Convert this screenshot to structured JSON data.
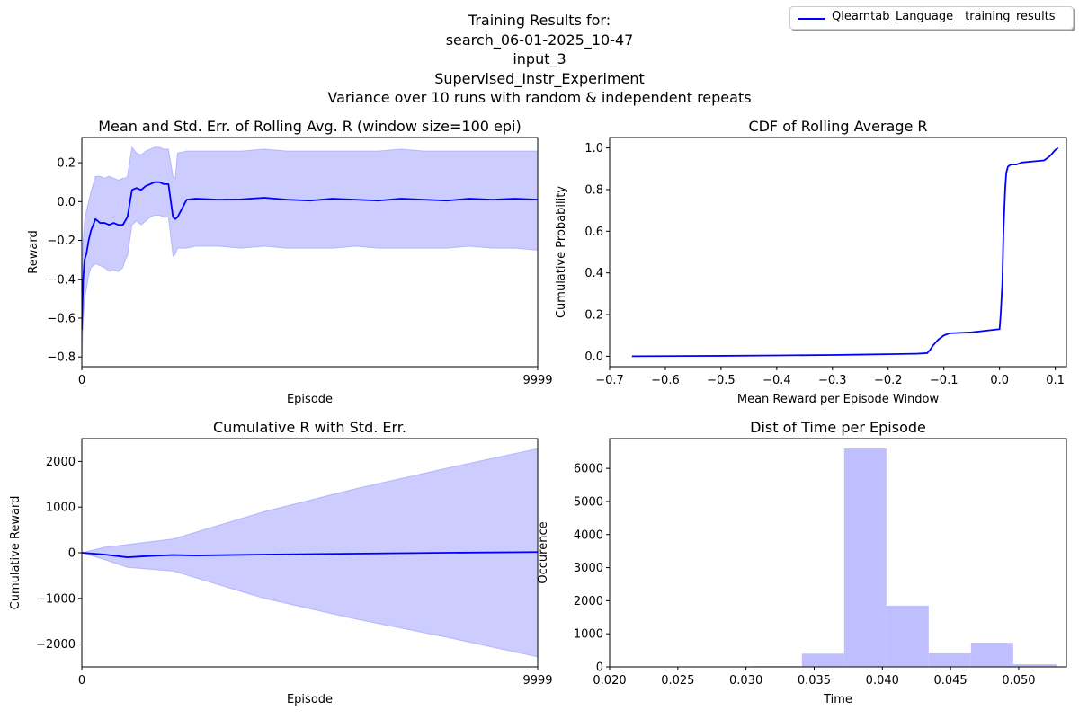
{
  "figure": {
    "suptitle_lines": [
      "Training Results for:",
      "search_06-01-2025_10-47",
      "input_3",
      "Supervised_Instr_Experiment",
      "Variance over 10 runs with random & independent repeats"
    ],
    "legend_label": "Qlearntab_Language__training_results",
    "line_color": "#0000ff",
    "fill_color": "#ccccff",
    "hist_color": "#bfbfff"
  },
  "chart_data": [
    {
      "type": "line",
      "title": "Mean and Std. Err. of Rolling Avg. R (window size=100 epi)",
      "xlabel": "Episode",
      "ylabel": "Reward",
      "xlim": [
        0,
        9999
      ],
      "ylim": [
        -0.85,
        0.33
      ],
      "xticks": [
        0,
        9999
      ],
      "yticks": [
        -0.8,
        -0.6,
        -0.4,
        -0.2,
        0.0,
        0.2
      ],
      "ytick_labels": [
        "−0.8",
        "−0.6",
        "−0.4",
        "−0.2",
        "0.0",
        "0.2"
      ],
      "series": [
        {
          "x": [
            0,
            30,
            60,
            100,
            150,
            200,
            300,
            400,
            500,
            600,
            700,
            800,
            900,
            950,
            1000,
            1100,
            1200,
            1300,
            1400,
            1500,
            1600,
            1700,
            1800,
            1900,
            2000,
            2050,
            2100,
            2300,
            2500,
            3000,
            3500,
            4000,
            4500,
            5000,
            5500,
            6000,
            6500,
            7000,
            7500,
            8000,
            8500,
            9000,
            9500,
            9999
          ],
          "y": [
            -0.66,
            -0.4,
            -0.3,
            -0.27,
            -0.2,
            -0.15,
            -0.09,
            -0.11,
            -0.11,
            -0.12,
            -0.11,
            -0.12,
            -0.12,
            -0.1,
            -0.08,
            0.06,
            0.07,
            0.06,
            0.08,
            0.09,
            0.1,
            0.1,
            0.09,
            0.09,
            -0.08,
            -0.09,
            -0.08,
            0.01,
            0.015,
            0.01,
            0.012,
            0.02,
            0.01,
            0.005,
            0.015,
            0.01,
            0.005,
            0.015,
            0.01,
            0.005,
            0.015,
            0.01,
            0.015,
            0.01
          ],
          "lower": [
            -0.82,
            -0.6,
            -0.5,
            -0.45,
            -0.38,
            -0.34,
            -0.32,
            -0.33,
            -0.34,
            -0.36,
            -0.35,
            -0.36,
            -0.34,
            -0.3,
            -0.28,
            -0.12,
            -0.1,
            -0.12,
            -0.1,
            -0.08,
            -0.07,
            -0.07,
            -0.08,
            -0.08,
            -0.28,
            -0.27,
            -0.24,
            -0.24,
            -0.23,
            -0.23,
            -0.24,
            -0.23,
            -0.24,
            -0.24,
            -0.24,
            -0.23,
            -0.24,
            -0.24,
            -0.24,
            -0.24,
            -0.23,
            -0.24,
            -0.24,
            -0.25
          ],
          "upper": [
            -0.5,
            -0.2,
            -0.1,
            -0.05,
            0.0,
            0.05,
            0.13,
            0.13,
            0.12,
            0.13,
            0.12,
            0.11,
            0.12,
            0.12,
            0.13,
            0.28,
            0.25,
            0.24,
            0.26,
            0.27,
            0.28,
            0.28,
            0.27,
            0.27,
            0.13,
            0.12,
            0.25,
            0.26,
            0.26,
            0.26,
            0.26,
            0.27,
            0.26,
            0.26,
            0.26,
            0.26,
            0.26,
            0.27,
            0.26,
            0.26,
            0.26,
            0.26,
            0.26,
            0.26
          ]
        }
      ]
    },
    {
      "type": "line",
      "title": "CDF of Rolling Average R",
      "xlabel": "Mean Reward per Episode Window",
      "ylabel": "Cumulative Probability",
      "xlim": [
        -0.7,
        0.12
      ],
      "ylim": [
        -0.05,
        1.05
      ],
      "xticks": [
        -0.7,
        -0.6,
        -0.5,
        -0.4,
        -0.3,
        -0.2,
        -0.1,
        0.0,
        0.1
      ],
      "xtick_labels": [
        "−0.7",
        "−0.6",
        "−0.5",
        "−0.4",
        "−0.3",
        "−0.2",
        "−0.1",
        "0.0",
        "0.1"
      ],
      "yticks": [
        0.0,
        0.2,
        0.4,
        0.6,
        0.8,
        1.0
      ],
      "ytick_labels": [
        "0.0",
        "0.2",
        "0.4",
        "0.6",
        "0.8",
        "1.0"
      ],
      "series": [
        {
          "x": [
            -0.66,
            -0.5,
            -0.4,
            -0.3,
            -0.25,
            -0.2,
            -0.15,
            -0.13,
            -0.125,
            -0.12,
            -0.11,
            -0.1,
            -0.09,
            -0.05,
            0.0,
            0.002,
            0.005,
            0.007,
            0.01,
            0.012,
            0.015,
            0.02,
            0.03,
            0.04,
            0.06,
            0.08,
            0.09,
            0.1,
            0.105
          ],
          "y": [
            0.0,
            0.002,
            0.004,
            0.006,
            0.008,
            0.01,
            0.012,
            0.015,
            0.03,
            0.05,
            0.08,
            0.1,
            0.11,
            0.115,
            0.13,
            0.2,
            0.35,
            0.6,
            0.8,
            0.88,
            0.91,
            0.92,
            0.92,
            0.93,
            0.935,
            0.94,
            0.96,
            0.99,
            1.0
          ]
        }
      ]
    },
    {
      "type": "area",
      "title": "Cumulative R with Std. Err.",
      "xlabel": "Episode",
      "ylabel": "Cumulative Reward",
      "xlim": [
        0,
        9999
      ],
      "ylim": [
        -2500,
        2500
      ],
      "xticks": [
        0,
        9999
      ],
      "yticks": [
        -2000,
        -1000,
        0,
        1000,
        2000
      ],
      "ytick_labels": [
        "−2000",
        "−1000",
        "0",
        "1000",
        "2000"
      ],
      "series": [
        {
          "x": [
            0,
            500,
            1000,
            1500,
            2000,
            2500,
            4000,
            6000,
            8000,
            9999
          ],
          "y": [
            0,
            -40,
            -100,
            -70,
            -50,
            -60,
            -40,
            -20,
            0,
            15
          ],
          "lower": [
            0,
            -150,
            -320,
            -360,
            -400,
            -550,
            -1000,
            -1450,
            -1850,
            -2280
          ],
          "upper": [
            0,
            120,
            180,
            240,
            300,
            450,
            900,
            1400,
            1850,
            2280
          ]
        }
      ]
    },
    {
      "type": "bar",
      "title": "Dist of Time per Episode",
      "xlabel": "Time",
      "ylabel": "Occurence",
      "xlim": [
        0.02,
        0.0535
      ],
      "ylim": [
        0,
        6900
      ],
      "xticks": [
        0.02,
        0.025,
        0.03,
        0.035,
        0.04,
        0.045,
        0.05
      ],
      "xtick_labels": [
        "0.020",
        "0.025",
        "0.030",
        "0.035",
        "0.040",
        "0.045",
        "0.050"
      ],
      "yticks": [
        0,
        1000,
        2000,
        3000,
        4000,
        5000,
        6000
      ],
      "ytick_labels": [
        "0",
        "1000",
        "2000",
        "3000",
        "4000",
        "5000",
        "6000"
      ],
      "bins": [
        [
          0.0202,
          0.0241
        ],
        [
          0.0241,
          0.0273
        ],
        [
          0.0273,
          0.0305
        ],
        [
          0.0305,
          0.0341
        ],
        [
          0.0341,
          0.0372
        ],
        [
          0.0372,
          0.0403
        ],
        [
          0.0403,
          0.0434
        ],
        [
          0.0434,
          0.0465
        ],
        [
          0.0465,
          0.0496
        ],
        [
          0.0496,
          0.0528
        ]
      ],
      "values": [
        3,
        5,
        8,
        20,
        400,
        6600,
        1850,
        410,
        730,
        80
      ]
    }
  ]
}
